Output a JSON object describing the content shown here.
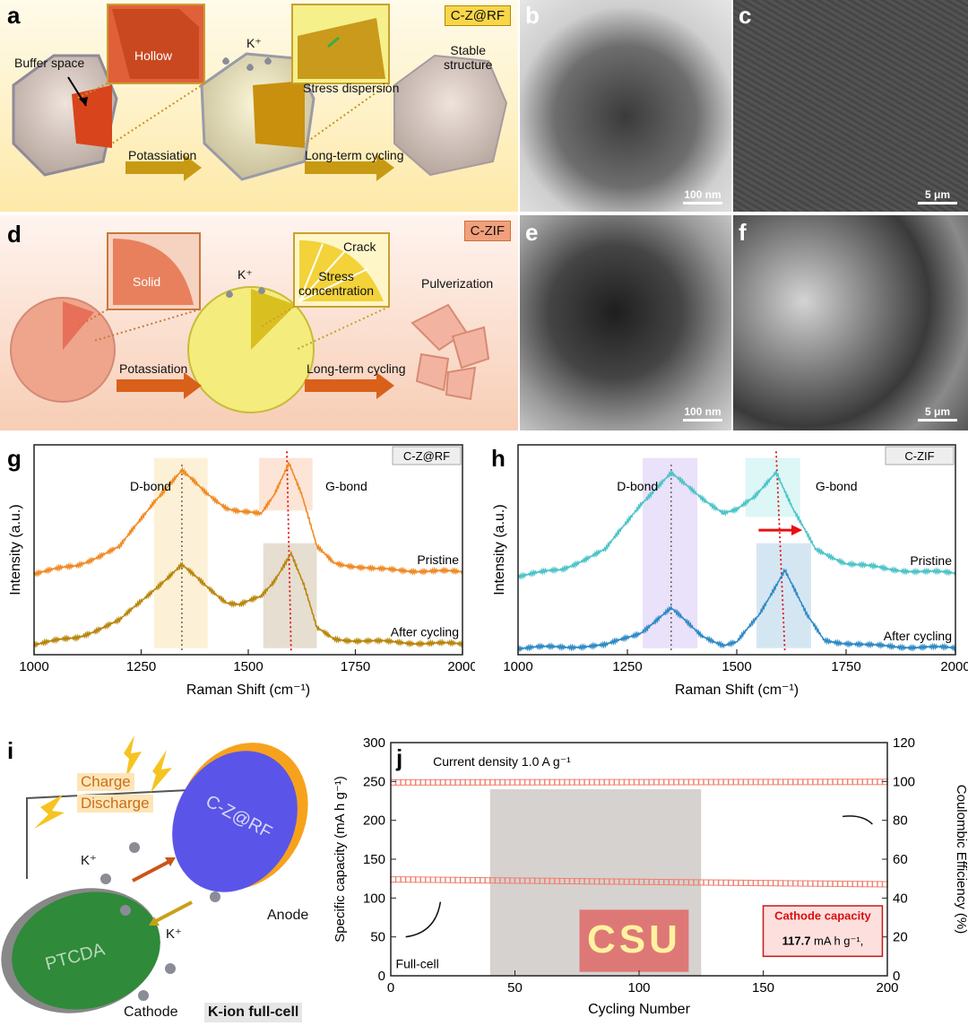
{
  "panels": {
    "a": {
      "label": "a",
      "tag": "C-Z@RF",
      "buffer": "Buffer space",
      "hollow": "Hollow",
      "kplus": "K⁺",
      "stress": "Stress dispersion",
      "stable": "Stable\nstructure",
      "arrow1": "Potassiation",
      "arrow2": "Long-term cycling"
    },
    "b": {
      "label": "b",
      "scale": "100 nm"
    },
    "c": {
      "label": "c",
      "scale": "5 μm"
    },
    "d": {
      "label": "d",
      "tag": "C-ZIF",
      "solid": "Solid",
      "kplus": "K⁺",
      "crack": "Crack",
      "stress": "Stress\nconcentration",
      "pulver": "Pulverization",
      "arrow1": "Potassiation",
      "arrow2": "Long-term cycling"
    },
    "e": {
      "label": "e",
      "scale": "100 nm"
    },
    "f": {
      "label": "f",
      "scale": "5 μm"
    },
    "i": {
      "label": "i",
      "charge": "Charge",
      "discharge": "Discharge",
      "anode_disk": "C-Z@RF",
      "cathode_disk": "PTCDA",
      "kplus1": "K⁺",
      "kplus2": "K⁺",
      "anode": "Anode",
      "cathode": "Cathode",
      "fullcell": "K-ion full-cell"
    }
  },
  "chart_data": [
    {
      "id": "g",
      "type": "line",
      "title": "C-Z@RF",
      "xlabel": "Raman Shift (cm⁻¹)",
      "ylabel": "Intensity (a.u.)",
      "xlim": [
        1000,
        2000
      ],
      "xticks": [
        1000,
        1250,
        1500,
        1750,
        2000
      ],
      "annotations": [
        "D-bond",
        "G-bond"
      ],
      "series": [
        {
          "name": "Pristine",
          "color": "#f08a24",
          "offset": 0.62,
          "x": [
            1000,
            1100,
            1200,
            1280,
            1345,
            1400,
            1450,
            1480,
            1530,
            1560,
            1595,
            1625,
            1660,
            1700,
            1800,
            1900,
            2000
          ],
          "y": [
            0.0,
            0.06,
            0.2,
            0.55,
            0.78,
            0.62,
            0.5,
            0.47,
            0.45,
            0.6,
            0.85,
            0.6,
            0.2,
            0.08,
            0.03,
            0.02,
            0.01
          ]
        },
        {
          "name": "After cycling",
          "color": "#b8860b",
          "offset": 0.08,
          "x": [
            1000,
            1100,
            1200,
            1280,
            1345,
            1400,
            1450,
            1480,
            1530,
            1560,
            1600,
            1630,
            1660,
            1700,
            1800,
            1900,
            2000
          ],
          "y": [
            0.0,
            0.05,
            0.18,
            0.42,
            0.6,
            0.45,
            0.32,
            0.3,
            0.36,
            0.48,
            0.7,
            0.45,
            0.12,
            0.04,
            0.02,
            0.01,
            0.0
          ]
        }
      ],
      "peaks": {
        "d": 1345,
        "g_pristine": 1590,
        "g_after": 1600
      }
    },
    {
      "id": "h",
      "type": "line",
      "title": "C-ZIF",
      "xlabel": "Raman Shift (cm⁻¹)",
      "ylabel": "Intensity (a.u.)",
      "xlim": [
        1000,
        2000
      ],
      "xticks": [
        1000,
        1250,
        1500,
        1750,
        2000
      ],
      "annotations": [
        "D-bond",
        "G-bond"
      ],
      "series": [
        {
          "name": "Pristine",
          "color": "#4cc4c8",
          "offset": 0.6,
          "x": [
            1000,
            1100,
            1200,
            1280,
            1350,
            1420,
            1470,
            1500,
            1540,
            1590,
            1630,
            1680,
            1750,
            1850,
            2000
          ],
          "y": [
            0.0,
            0.05,
            0.2,
            0.55,
            0.78,
            0.6,
            0.48,
            0.5,
            0.6,
            0.8,
            0.5,
            0.2,
            0.1,
            0.05,
            0.02
          ]
        },
        {
          "name": "After cycling",
          "color": "#2f8ac4",
          "offset": 0.05,
          "x": [
            1000,
            1200,
            1280,
            1350,
            1420,
            1470,
            1500,
            1550,
            1610,
            1660,
            1700,
            1800,
            2000
          ],
          "y": [
            0.0,
            0.02,
            0.12,
            0.3,
            0.1,
            0.02,
            0.04,
            0.25,
            0.6,
            0.25,
            0.06,
            0.02,
            0.0
          ]
        }
      ],
      "peaks": {
        "d": 1350,
        "g_pristine": 1590,
        "g_after": 1610
      }
    },
    {
      "id": "j",
      "type": "scatter",
      "title": "Current density 1.0 A g⁻¹",
      "xlabel": "Cycling Number",
      "ylabel": "Specific capacity (mA h g⁻¹)",
      "ylabel_right": "Coulombic Efficiency (%)",
      "xlim": [
        0,
        200
      ],
      "ylim": [
        0,
        300
      ],
      "ylim_right": [
        0,
        120
      ],
      "xticks": [
        0,
        50,
        100,
        150,
        200
      ],
      "yticks": [
        0,
        50,
        100,
        150,
        200,
        250,
        300
      ],
      "yticks_right": [
        0,
        20,
        40,
        60,
        80,
        100,
        120
      ],
      "series": [
        {
          "name": "Specific capacity",
          "axis": "left",
          "start": 124,
          "end": 117.7
        },
        {
          "name": "Coulombic Efficiency",
          "axis": "right",
          "start": 99.5,
          "end": 99.8
        }
      ],
      "note_title": "Cathode capacity",
      "note_value": "117.7",
      "note_unit": "mA h g⁻¹,",
      "fullcell": "Full-cell",
      "photo_text": "CSU"
    }
  ]
}
